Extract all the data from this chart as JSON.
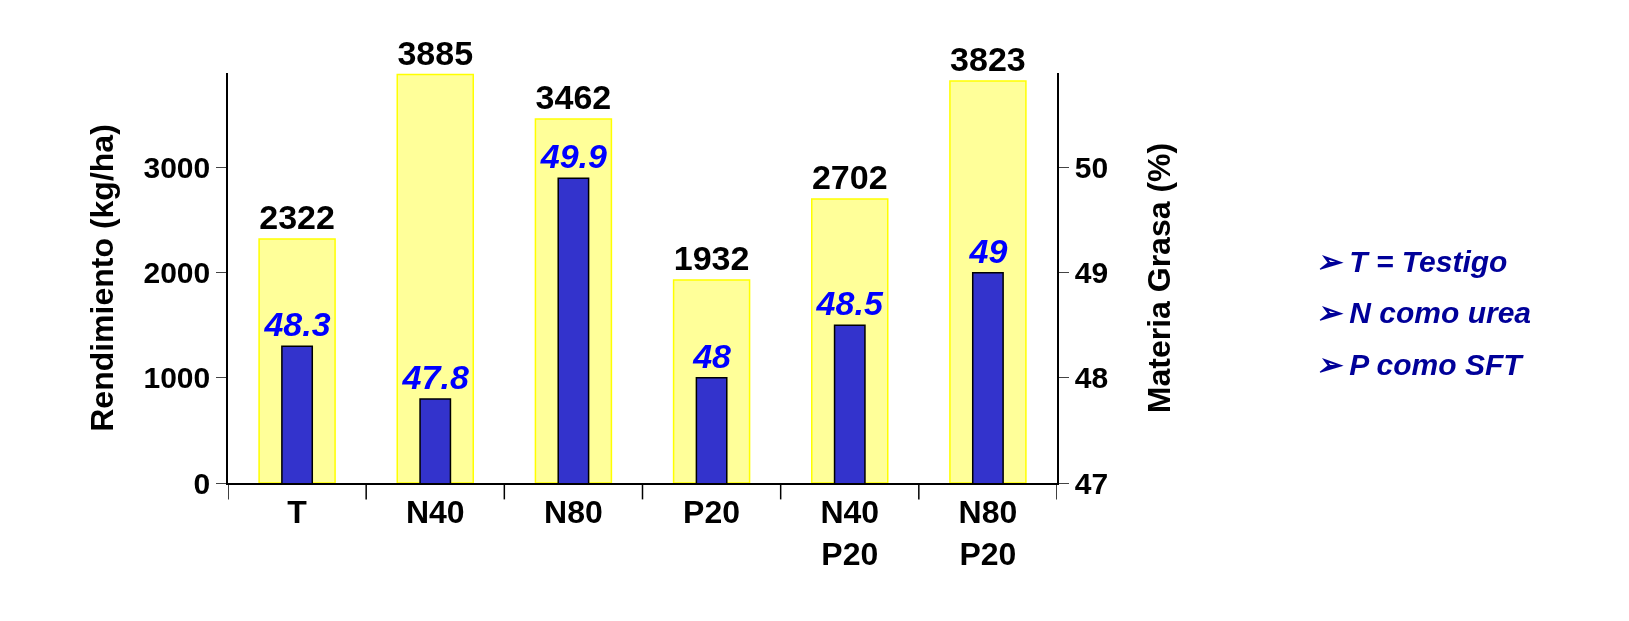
{
  "chart_data": {
    "type": "bar",
    "ylabel": "Rendimiento (kg/ha)",
    "y2label": "Materia Grasa (%)",
    "categories": [
      "T",
      "N40",
      "N80",
      "P20",
      "N40\nP20",
      "N80\nP20"
    ],
    "series": [
      {
        "color": "#ffff99",
        "values": [
          2322,
          3885,
          3462,
          1932,
          2702,
          3823
        ]
      },
      {
        "axis": "y2",
        "color": "#3333cc",
        "values": [
          48.3,
          47.8,
          49.9,
          48,
          48.5,
          49
        ]
      }
    ],
    "ylim": [
      0,
      3900
    ],
    "yticks": [
      0,
      1000,
      2000,
      3000
    ],
    "y2lim": [
      47,
      50.9
    ],
    "y2ticks": [
      47,
      48,
      49,
      50
    ],
    "data_labels": true,
    "annotations": [
      "➢ T = Testigo",
      "➢ N como urea",
      "➢ P como SFT"
    ]
  }
}
